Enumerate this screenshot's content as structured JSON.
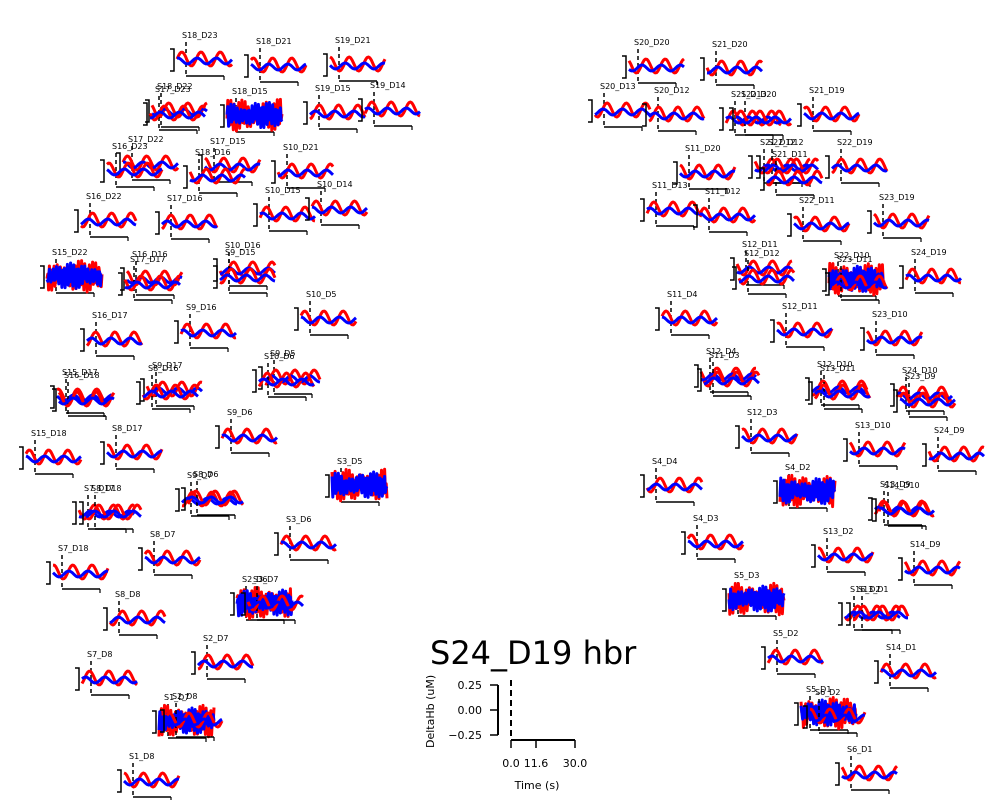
{
  "chart_data": {
    "type": "line",
    "title": "S24_D19 hbr",
    "series": [
      {
        "name": "hbo",
        "color": "#ff0000"
      },
      {
        "name": "hbr",
        "color": "#0000ff"
      }
    ],
    "inset_axes": {
      "ylabel": "DeltaHb (uM)",
      "xlabel": "Time (s)",
      "yticks": [
        "0.25",
        "0.00",
        "−0.25"
      ],
      "xticks": [
        "0.0",
        "11.6",
        "30.0"
      ],
      "ylim": [
        -0.25,
        0.25
      ],
      "xlim": [
        0.0,
        30.0
      ]
    },
    "channels": [
      {
        "name": "S18_D23",
        "noisy": false
      },
      {
        "name": "S18_D21",
        "noisy": false
      },
      {
        "name": "S19_D21",
        "noisy": false
      },
      {
        "name": "S18_D22",
        "noisy": false
      },
      {
        "name": "S17_D23",
        "noisy": false
      },
      {
        "name": "S18_D15",
        "noisy": true
      },
      {
        "name": "S19_D15",
        "noisy": false
      },
      {
        "name": "S19_D14",
        "noisy": false
      },
      {
        "name": "S17_D22",
        "noisy": false
      },
      {
        "name": "S16_D23",
        "noisy": false
      },
      {
        "name": "S17_D15",
        "noisy": false
      },
      {
        "name": "S18_D16",
        "noisy": false
      },
      {
        "name": "S10_D21",
        "noisy": false
      },
      {
        "name": "S16_D22",
        "noisy": false
      },
      {
        "name": "S17_D16",
        "noisy": false
      },
      {
        "name": "S10_D15",
        "noisy": false
      },
      {
        "name": "S10_D14",
        "noisy": false
      },
      {
        "name": "S15_D22",
        "noisy": true
      },
      {
        "name": "S16_D16",
        "noisy": false
      },
      {
        "name": "S17_D17",
        "noisy": false
      },
      {
        "name": "S10_D16",
        "noisy": false
      },
      {
        "name": "S9_D15",
        "noisy": false
      },
      {
        "name": "S16_D17",
        "noisy": false
      },
      {
        "name": "S9_D16",
        "noisy": false
      },
      {
        "name": "S10_D5",
        "noisy": false
      },
      {
        "name": "S15_D17",
        "noisy": false
      },
      {
        "name": "S16_D18",
        "noisy": false
      },
      {
        "name": "S9_D17",
        "noisy": false
      },
      {
        "name": "S8_D16",
        "noisy": false
      },
      {
        "name": "S9_D5",
        "noisy": false
      },
      {
        "name": "S10_D6",
        "noisy": false
      },
      {
        "name": "S9_D6",
        "noisy": false
      },
      {
        "name": "S15_D18",
        "noisy": false
      },
      {
        "name": "S8_D17",
        "noisy": false
      },
      {
        "name": "S3_D5",
        "noisy": true
      },
      {
        "name": "S7_D17",
        "noisy": false
      },
      {
        "name": "S8_D18",
        "noisy": false
      },
      {
        "name": "S9_D7",
        "noisy": false
      },
      {
        "name": "S8_D6",
        "noisy": false
      },
      {
        "name": "S3_D6",
        "noisy": false
      },
      {
        "name": "S8_D7",
        "noisy": false
      },
      {
        "name": "S7_D18",
        "noisy": false
      },
      {
        "name": "S2_D6",
        "noisy": true
      },
      {
        "name": "S3_D7",
        "noisy": false
      },
      {
        "name": "S8_D8",
        "noisy": false
      },
      {
        "name": "S2_D7",
        "noisy": false
      },
      {
        "name": "S7_D8",
        "noisy": false
      },
      {
        "name": "S1_D7",
        "noisy": true
      },
      {
        "name": "S2_D8",
        "noisy": false
      },
      {
        "name": "S1_D8",
        "noisy": false
      },
      {
        "name": "S20_D20",
        "noisy": false
      },
      {
        "name": "S21_D20",
        "noisy": false
      },
      {
        "name": "S20_D13",
        "noisy": false
      },
      {
        "name": "S20_D12",
        "noisy": false
      },
      {
        "name": "S21_D13",
        "noisy": false
      },
      {
        "name": "S22_D20",
        "noisy": false
      },
      {
        "name": "S21_D19",
        "noisy": false
      },
      {
        "name": "S11_D20",
        "noisy": false
      },
      {
        "name": "S21_D12",
        "noisy": false
      },
      {
        "name": "S22_D12",
        "noisy": false
      },
      {
        "name": "S21_D11",
        "noisy": false
      },
      {
        "name": "S22_D19",
        "noisy": false
      },
      {
        "name": "S11_D13",
        "noisy": false
      },
      {
        "name": "S11_D12",
        "noisy": false
      },
      {
        "name": "S22_D11",
        "noisy": false
      },
      {
        "name": "S23_D19",
        "noisy": false
      },
      {
        "name": "S12_D11",
        "noisy": false
      },
      {
        "name": "S12_D12",
        "noisy": false
      },
      {
        "name": "S22_D10",
        "noisy": true
      },
      {
        "name": "S23_D11",
        "noisy": false
      },
      {
        "name": "S24_D19",
        "noisy": false
      },
      {
        "name": "S11_D4",
        "noisy": false
      },
      {
        "name": "S12_D11",
        "noisy": false
      },
      {
        "name": "S23_D10",
        "noisy": false
      },
      {
        "name": "S12_D4",
        "noisy": false
      },
      {
        "name": "S11_D3",
        "noisy": false
      },
      {
        "name": "S12_D10",
        "noisy": false
      },
      {
        "name": "S13_D11",
        "noisy": false
      },
      {
        "name": "S24_D10",
        "noisy": false
      },
      {
        "name": "S23_D9",
        "noisy": false
      },
      {
        "name": "S12_D3",
        "noisy": false
      },
      {
        "name": "S13_D10",
        "noisy": false
      },
      {
        "name": "S24_D9",
        "noisy": false
      },
      {
        "name": "S4_D4",
        "noisy": false
      },
      {
        "name": "S4_D2",
        "noisy": true
      },
      {
        "name": "S13_D9",
        "noisy": false
      },
      {
        "name": "S14_D10",
        "noisy": false
      },
      {
        "name": "S4_D3",
        "noisy": false
      },
      {
        "name": "S13_D2",
        "noisy": false
      },
      {
        "name": "S14_D9",
        "noisy": false
      },
      {
        "name": "S5_D3",
        "noisy": true
      },
      {
        "name": "S16_D2",
        "noisy": false
      },
      {
        "name": "S13_D1",
        "noisy": false
      },
      {
        "name": "S5_D2",
        "noisy": false
      },
      {
        "name": "S14_D1",
        "noisy": false
      },
      {
        "name": "S5_D1",
        "noisy": true
      },
      {
        "name": "S6_D2",
        "noisy": false
      },
      {
        "name": "S6_D1",
        "noisy": false
      }
    ]
  }
}
